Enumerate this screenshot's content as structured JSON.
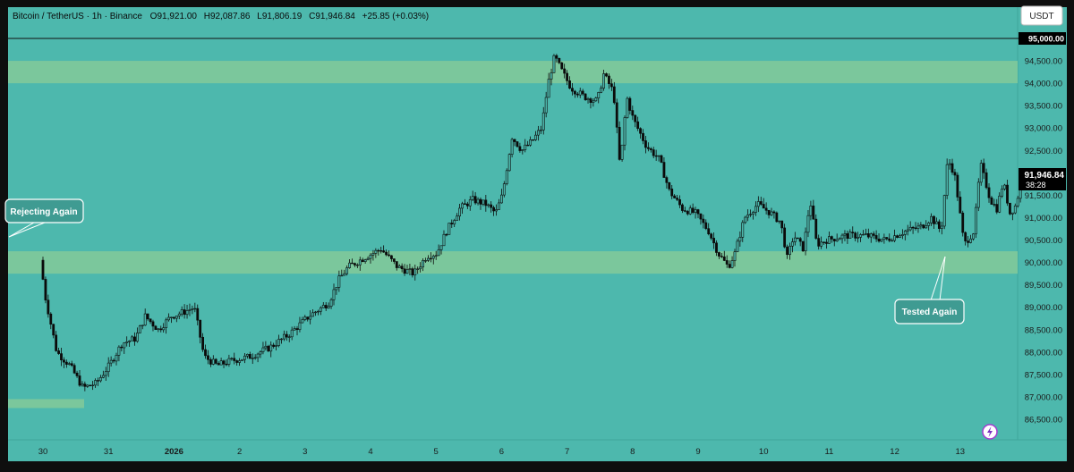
{
  "header": {
    "symbol": "Bitcoin / TetherUS · 1h · Binance",
    "open_label": "O",
    "open": "91,921.00",
    "high_label": "H",
    "high": "92,087.86",
    "low_label": "L",
    "low": "91,806.19",
    "close_label": "C",
    "close": "91,946.84",
    "change": "+25.85 (+0.03%)"
  },
  "currency_button": "USDT",
  "price_axis": {
    "top_label": "95,000.00",
    "current_price": "91,946.84",
    "countdown": "38:28"
  },
  "annotations": {
    "left": "Rejecting Again",
    "right": "Tested Again"
  },
  "colors": {
    "background": "#4db8ad",
    "zone": "#7bc79c",
    "candle": "#0b0b0b",
    "callout_fill": "#3f9b92",
    "frame": "#0e0e0e"
  },
  "icons": {
    "logo": "lightning-icon"
  },
  "chart_data": {
    "type": "candlestick",
    "title": "Bitcoin / TetherUS · 1h · Binance",
    "xlabel": "",
    "ylabel": "",
    "ylim": [
      86000,
      95400
    ],
    "x_ticks": [
      "30",
      "31",
      "2026",
      "2",
      "3",
      "4",
      "5",
      "6",
      "7",
      "8",
      "9",
      "10",
      "11",
      "12",
      "13"
    ],
    "y_ticks": [
      86500,
      87000,
      87500,
      88000,
      88500,
      89000,
      89500,
      90000,
      90500,
      91000,
      91500,
      92000,
      92500,
      93000,
      93500,
      94000,
      94500
    ],
    "y_tick_labels": [
      "86,500.00",
      "87,000.00",
      "87,500.00",
      "88,000.00",
      "88,500.00",
      "89,000.00",
      "89,500.00",
      "90,000.00",
      "90,500.00",
      "91,000.00",
      "91,500.00",
      "92,000.00",
      "92,500.00",
      "93,000.00",
      "93,500.00",
      "94,000.00",
      "94,500.00"
    ],
    "horizontal_line": 95000,
    "zones": [
      {
        "low": 94000,
        "high": 94500
      },
      {
        "low": 89750,
        "high": 90250
      },
      {
        "low": 86750,
        "high": 86950
      }
    ],
    "path": [
      [
        0,
        90050
      ],
      [
        0.08,
        89200
      ],
      [
        0.25,
        88000
      ],
      [
        0.45,
        87700
      ],
      [
        0.65,
        87200
      ],
      [
        0.85,
        87300
      ],
      [
        1.05,
        87700
      ],
      [
        1.25,
        88200
      ],
      [
        1.45,
        88300
      ],
      [
        1.6,
        88800
      ],
      [
        1.8,
        88500
      ],
      [
        2.0,
        88800
      ],
      [
        2.2,
        88900
      ],
      [
        2.35,
        89000
      ],
      [
        2.5,
        87900
      ],
      [
        2.7,
        87700
      ],
      [
        2.9,
        87800
      ],
      [
        3.2,
        87900
      ],
      [
        3.5,
        88100
      ],
      [
        3.8,
        88400
      ],
      [
        4.1,
        88800
      ],
      [
        4.4,
        89100
      ],
      [
        4.55,
        89600
      ],
      [
        4.7,
        89900
      ],
      [
        5.0,
        90150
      ],
      [
        5.2,
        90300
      ],
      [
        5.45,
        89900
      ],
      [
        5.7,
        89750
      ],
      [
        5.9,
        90150
      ],
      [
        6.05,
        90200
      ],
      [
        6.2,
        90700
      ],
      [
        6.4,
        91200
      ],
      [
        6.6,
        91400
      ],
      [
        6.8,
        91300
      ],
      [
        6.95,
        91100
      ],
      [
        7.05,
        91500
      ],
      [
        7.2,
        92800
      ],
      [
        7.35,
        92500
      ],
      [
        7.5,
        92700
      ],
      [
        7.65,
        93000
      ],
      [
        7.75,
        94000
      ],
      [
        7.85,
        94600
      ],
      [
        7.95,
        94300
      ],
      [
        8.1,
        93900
      ],
      [
        8.3,
        93700
      ],
      [
        8.5,
        93600
      ],
      [
        8.6,
        94200
      ],
      [
        8.75,
        93800
      ],
      [
        8.85,
        92100
      ],
      [
        8.95,
        93700
      ],
      [
        9.05,
        93200
      ],
      [
        9.25,
        92600
      ],
      [
        9.45,
        92300
      ],
      [
        9.6,
        91600
      ],
      [
        9.8,
        91200
      ],
      [
        10.0,
        91100
      ],
      [
        10.2,
        90700
      ],
      [
        10.35,
        90200
      ],
      [
        10.5,
        89900
      ],
      [
        10.6,
        90200
      ],
      [
        10.75,
        91000
      ],
      [
        10.95,
        91300
      ],
      [
        11.15,
        91100
      ],
      [
        11.3,
        90900
      ],
      [
        11.4,
        90100
      ],
      [
        11.5,
        90600
      ],
      [
        11.65,
        90300
      ],
      [
        11.75,
        91400
      ],
      [
        11.85,
        90400
      ],
      [
        12.0,
        90500
      ],
      [
        12.3,
        90600
      ],
      [
        12.6,
        90600
      ],
      [
        12.9,
        90500
      ],
      [
        13.2,
        90700
      ],
      [
        13.45,
        90800
      ],
      [
        13.6,
        91000
      ],
      [
        13.75,
        90700
      ],
      [
        13.85,
        92300
      ],
      [
        13.95,
        92000
      ],
      [
        14.0,
        91500
      ],
      [
        14.1,
        90400
      ],
      [
        14.25,
        90700
      ],
      [
        14.35,
        92200
      ],
      [
        14.5,
        91400
      ],
      [
        14.6,
        91200
      ],
      [
        14.7,
        91800
      ],
      [
        14.8,
        91100
      ],
      [
        14.9,
        91300
      ],
      [
        14.97,
        91900
      ],
      [
        15.05,
        91950
      ]
    ]
  }
}
